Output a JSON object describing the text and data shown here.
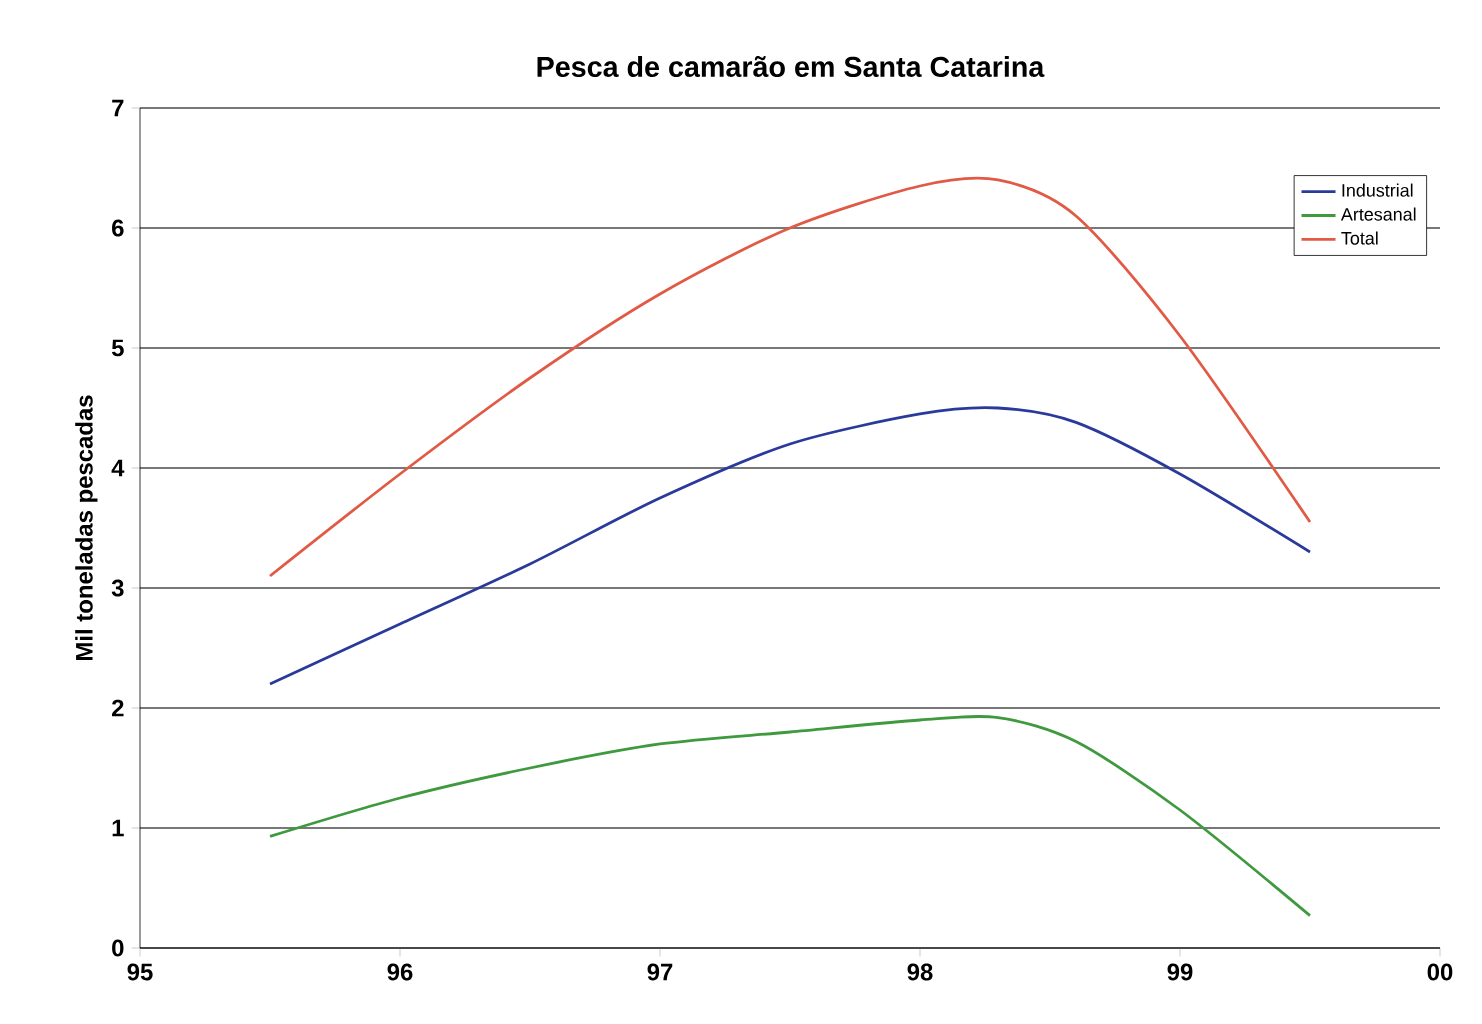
{
  "chart_data": {
    "type": "line",
    "title": "Pesca de camarão em Santa Catarina",
    "ylabel": "Mil toneladas pescadas",
    "xlim": [
      1995,
      2000
    ],
    "xticks": [
      {
        "value": 1995,
        "label": "95"
      },
      {
        "value": 1996,
        "label": "96"
      },
      {
        "value": 1997,
        "label": "97"
      },
      {
        "value": 1998,
        "label": "98"
      },
      {
        "value": 1999,
        "label": "99"
      },
      {
        "value": 2000,
        "label": "00"
      }
    ],
    "ylim": [
      0,
      7
    ],
    "yticks": [
      0,
      1,
      2,
      3,
      4,
      5,
      6,
      7
    ],
    "grid": "y",
    "legend": "top right",
    "marker": "none",
    "line_style": "solid",
    "series": [
      {
        "name": "Industrial",
        "color": "#2a3a9a",
        "x": [
          1995.5,
          1996,
          1996.5,
          1997,
          1997.5,
          1998,
          1998.3,
          1998.6,
          1999,
          1999.5
        ],
        "values": [
          2.2,
          2.7,
          3.2,
          3.75,
          4.2,
          4.45,
          4.5,
          4.38,
          3.95,
          3.3
        ]
      },
      {
        "name": "Artesanal",
        "color": "#3f9a3f",
        "x": [
          1995.5,
          1996,
          1996.5,
          1997,
          1997.5,
          1998,
          1998.3,
          1998.6,
          1999,
          1999.5
        ],
        "values": [
          0.93,
          1.25,
          1.5,
          1.7,
          1.8,
          1.9,
          1.92,
          1.72,
          1.15,
          0.27
        ]
      },
      {
        "name": "Total",
        "color": "#e05a45",
        "x": [
          1995.5,
          1996,
          1996.5,
          1997,
          1997.5,
          1998,
          1998.3,
          1998.6,
          1999,
          1999.5
        ],
        "values": [
          3.1,
          3.95,
          4.75,
          5.45,
          6.0,
          6.35,
          6.4,
          6.1,
          5.1,
          3.55
        ]
      }
    ]
  }
}
